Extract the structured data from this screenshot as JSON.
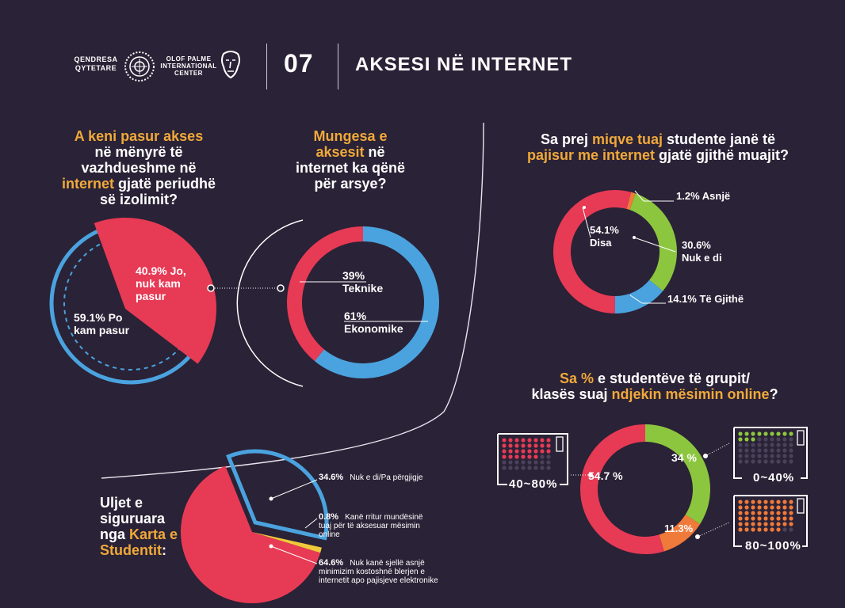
{
  "header": {
    "logo1_line1": "QENDRESA",
    "logo1_line2": "QYTETARE",
    "logo2_line1": "OLOF PALME",
    "logo2_line2": "INTERNATIONAL",
    "logo2_line3": "CENTER",
    "section_number": "07",
    "section_title": "AKSESI NË INTERNET"
  },
  "colors": {
    "red": "#e73a55",
    "blue": "#4aa3df",
    "green": "#8cc63f",
    "orange": "#f07a3a",
    "yellow": "#f0a93a",
    "bg": "#2a2236"
  },
  "q1": {
    "line1": "A keni pasur akses",
    "line2": "në mënyrë të",
    "line3": "vazhdueshme në",
    "line4_hl": "internet",
    "line4_rest": " gjatë periudhë",
    "line5": "së izolimit?"
  },
  "q2": {
    "line1_hl": "Mungesa e",
    "line2_hl": "aksesit",
    "line2_rest": " në",
    "line3": "internet ka qënë",
    "line4": "për arsye?"
  },
  "q3": {
    "l1_a": "Sa prej ",
    "l1_hl": "miqve tuaj",
    "l1_b": " studente janë të",
    "l2_hl": "pajisur me internet",
    "l2_b": "  gjatë gjithë muajit?"
  },
  "q4": {
    "l1_hl": "Sa %",
    "l1_b": " e studentëve të grupit/",
    "l2_a": "klasës suaj ",
    "l2_hl": "ndjekin mësimin online",
    "l2_b": "?"
  },
  "q5": {
    "line1": "Uljet e",
    "line2": "siguruara",
    "line3_a": "nga ",
    "line3_hl": "Karta e",
    "line4_hl": "Studentit",
    "line4_b": ":"
  },
  "chart_data": [
    {
      "type": "pie",
      "title": "A keni pasur akses në mënyrë të vazhdueshme në internet gjatë periudhë së izolimit?",
      "slices": [
        {
          "name": "Jo, nuk kam pasur",
          "value": 40.9,
          "pct_label": "40.9% Jo,",
          "label_l2": "nuk kam",
          "label_l3": "pasur"
        },
        {
          "name": "Po kam pasur",
          "value": 59.1,
          "pct_label": "59.1% Po",
          "label_l2": "kam pasur"
        }
      ]
    },
    {
      "type": "pie",
      "title": "Mungesa e aksesit në internet ka qënë për arsye?",
      "slices": [
        {
          "name": "Teknike",
          "value": 39,
          "pct_label": "39%",
          "label": "Teknike"
        },
        {
          "name": "Ekonomike",
          "value": 61,
          "pct_label": "61%",
          "label": "Ekonomike"
        }
      ]
    },
    {
      "type": "pie",
      "title": "Sa prej miqve tuaj studente janë të pajisur me internet gjatë gjithë muajit?",
      "slices": [
        {
          "name": "Asnjë",
          "value": 1.2,
          "label": "1.2% Asnjë"
        },
        {
          "name": "Nuk e di",
          "value": 30.6,
          "pct_label": "30.6%",
          "label": "Nuk e di"
        },
        {
          "name": "Të Gjithë",
          "value": 14.1,
          "label": "14.1% Të Gjithë"
        },
        {
          "name": "Disa",
          "value": 54.1,
          "pct_label": "54.1%",
          "label": "Disa"
        }
      ]
    },
    {
      "type": "pie",
      "title": "Sa % e studentëve të grupit/klasës suaj ndjekin mësimin online?",
      "slices": [
        {
          "name": "0~40%",
          "value": 34,
          "pct_label": "34 %",
          "range": "0~40%"
        },
        {
          "name": "80~100%",
          "value": 11.3,
          "pct_label": "11.3%",
          "range": "80~100%"
        },
        {
          "name": "40~80%",
          "value": 54.7,
          "pct_label": "54.7 %",
          "range": "40~80%"
        }
      ]
    },
    {
      "type": "pie",
      "title": "Uljet e siguruara nga Karta e Studentit:",
      "slices": [
        {
          "name": "Nuk e di/Pa përgjigje",
          "value": 34.6,
          "pct_label": "34.6%",
          "desc": "Nuk e di/Pa përgjigje"
        },
        {
          "name": "Kanë rritur mundësinë tuaj për të aksesuar mësimin online",
          "value": 0.8,
          "pct_label": "0.8%",
          "desc": "Kanë rritur mundësinë",
          "desc2": "tuaj për të aksesuar mësimin",
          "desc3": "online"
        },
        {
          "name": "Nuk kanë sjellë asnjë minimizim kostoshnë blerjen e internetit apo pajisjeve elektronike",
          "value": 64.6,
          "pct_label": "64.6%",
          "desc": "Nuk kanë sjellë asnjë",
          "desc2": "minimizim kostoshnë blerjen e",
          "desc3": "internetit apo pajisjeve elektronike"
        }
      ]
    }
  ]
}
